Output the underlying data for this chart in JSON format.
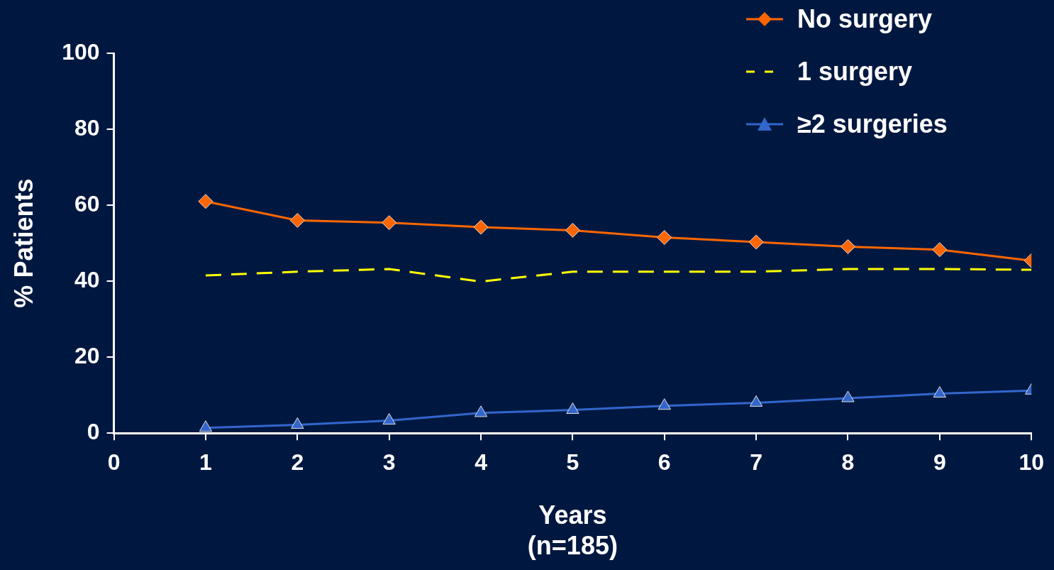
{
  "chart_data": {
    "type": "line",
    "xlabel": "Years\n(n=185)",
    "ylabel": "% Patients",
    "x": [
      1,
      2,
      3,
      4,
      5,
      6,
      7,
      8,
      9,
      10
    ],
    "xlim": [
      0,
      10
    ],
    "xticks": [
      0,
      1,
      2,
      3,
      4,
      5,
      6,
      7,
      8,
      9,
      10
    ],
    "ylim": [
      0,
      100
    ],
    "yticks": [
      0,
      20,
      40,
      60,
      80,
      100
    ],
    "grid": false,
    "legend": "top right",
    "series": [
      {
        "name": "No surgery",
        "color": "#ff6600",
        "marker": "diamond",
        "line_style": "solid",
        "values": [
          61,
          56,
          55.4,
          54.2,
          53.4,
          51.5,
          50.3,
          49.1,
          48.3,
          45.4
        ]
      },
      {
        "name": "1 surgery",
        "color": "#ffff00",
        "marker": "none",
        "line_style": "dashed",
        "values": [
          41.5,
          42.5,
          43.2,
          39.9,
          42.5,
          42.5,
          42.5,
          43.2,
          43.2,
          43
        ]
      },
      {
        "name": "≥2 surgeries",
        "color": "#3366cc",
        "marker": "triangle",
        "line_style": "solid",
        "values": [
          1.4,
          2.2,
          3.3,
          5.3,
          6.1,
          7.2,
          8,
          9.2,
          10.4,
          11.2
        ]
      }
    ]
  }
}
